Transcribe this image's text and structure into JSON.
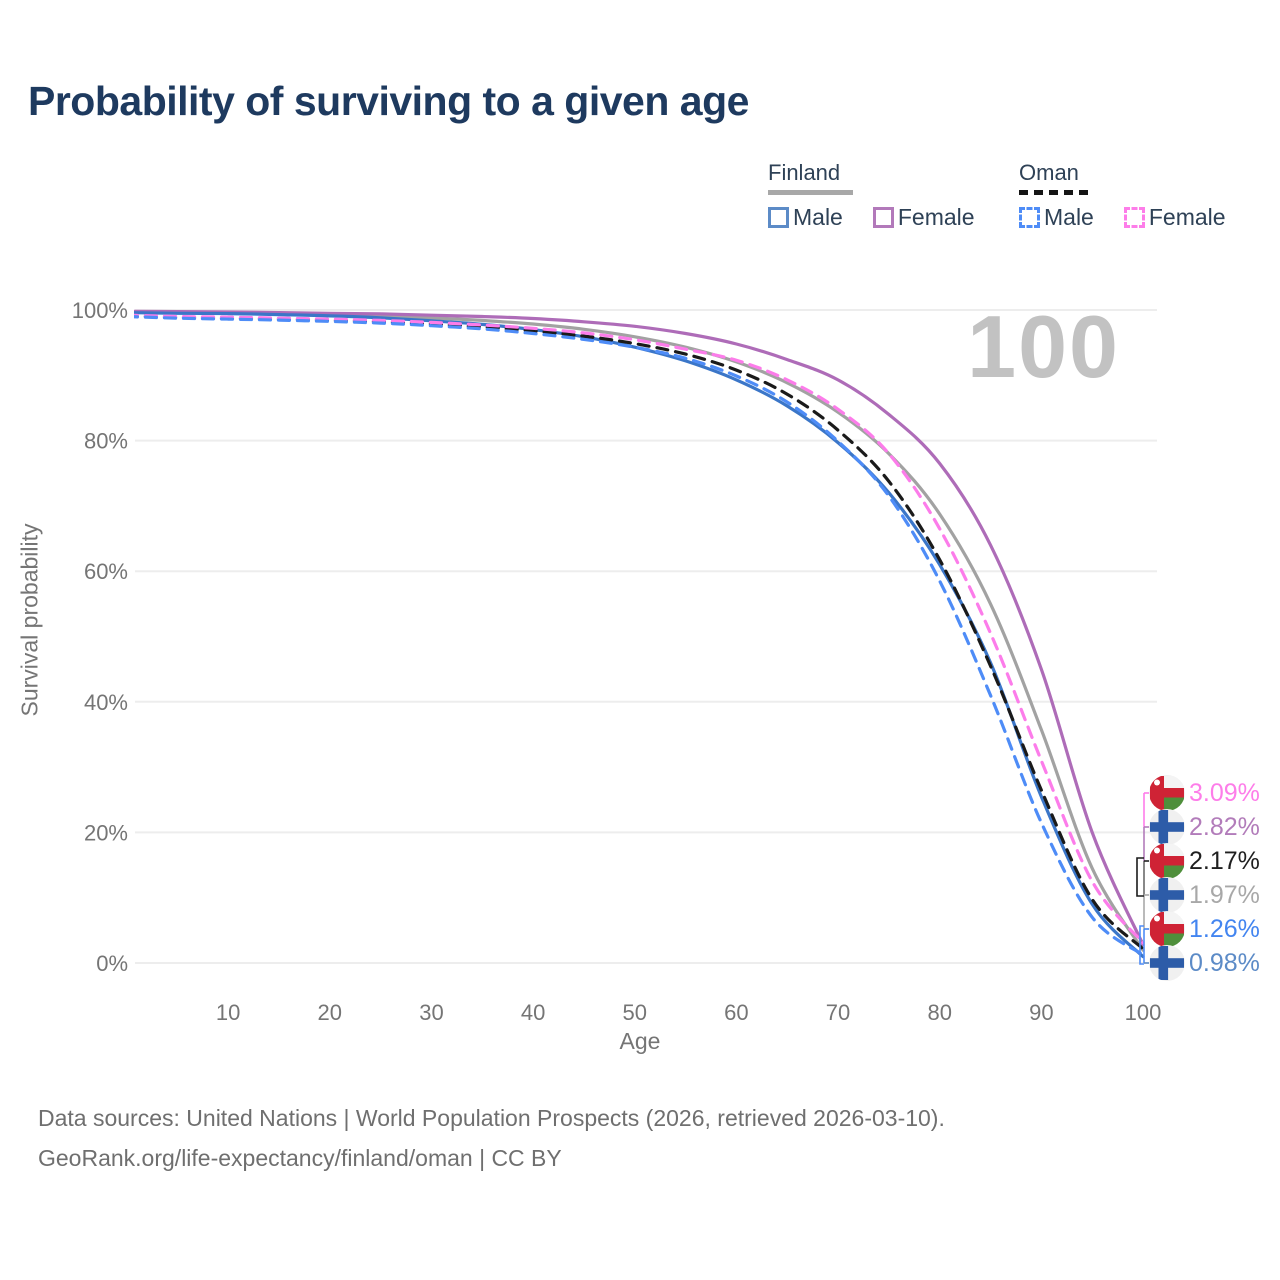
{
  "title": "Probability of surviving to a given age",
  "watermark_age": "100",
  "legend": {
    "finland": {
      "label": "Finland",
      "male": "Male",
      "female": "Female"
    },
    "oman": {
      "label": "Oman",
      "male": "Male",
      "female": "Female"
    }
  },
  "footer": {
    "line1": "Data sources: United Nations | World Population Prospects (2026, retrieved 2026-03-10).",
    "line2": "GeoRank.org/life-expectancy/finland/oman | CC BY"
  },
  "colors": {
    "title_text": "#1e3a5f",
    "legend_text": "#2e4156",
    "axis_text": "#757575",
    "gridline": "#ededed",
    "watermark": "#c2c2c2",
    "finland_underline": "#a8a8a8",
    "oman_underline": "#151515",
    "finland_male": "#3b76c8",
    "finland_female": "#ae6cb8",
    "finland_both": "#a2a2a2",
    "oman_male": "#4e8cf7",
    "oman_female": "#fc7cea",
    "oman_both": "#1a1a1a"
  },
  "end_labels": [
    {
      "flag": "oman",
      "series": "Oman Female",
      "value": "3.09%",
      "color": "#fd7de9"
    },
    {
      "flag": "finland",
      "series": "Finland Female",
      "value": "2.82%",
      "color": "#b27cba"
    },
    {
      "flag": "oman",
      "series": "Oman Both sexes",
      "value": "2.17%",
      "color": "#1f1f1f"
    },
    {
      "flag": "finland",
      "series": "Finland Both sexes",
      "value": "1.97%",
      "color": "#a8a8a8"
    },
    {
      "flag": "oman",
      "series": "Oman Male",
      "value": "1.26%",
      "color": "#4385f0"
    },
    {
      "flag": "finland",
      "series": "Finland Male",
      "value": "0.98%",
      "color": "#5c8bc7"
    }
  ],
  "chart_data": {
    "type": "line",
    "title": "Probability of surviving to a given age",
    "xlabel": "Age",
    "ylabel": "Survival probability",
    "x_range": [
      0,
      100
    ],
    "y_range_pct": [
      0,
      100
    ],
    "x_ticks": [
      10,
      20,
      30,
      40,
      50,
      60,
      70,
      80,
      90,
      100
    ],
    "y_ticks": [
      "0%",
      "20%",
      "40%",
      "60%",
      "80%",
      "100%"
    ],
    "grid": "horizontal-only",
    "legend_position": "top-right",
    "x_ages": [
      0,
      5,
      10,
      15,
      20,
      25,
      30,
      35,
      40,
      45,
      50,
      55,
      60,
      65,
      70,
      75,
      80,
      85,
      90,
      95,
      100
    ],
    "series": [
      {
        "name": "Finland Both sexes",
        "country": "Finland",
        "sex": "both",
        "style": "solid",
        "color": "#a2a2a2",
        "end_value_pct": 1.97,
        "values": [
          99.7,
          99.62,
          99.57,
          99.45,
          99.3,
          99.1,
          98.78,
          98.4,
          97.85,
          97.05,
          95.9,
          94.3,
          92.05,
          88.85,
          84.35,
          78.0,
          68.75,
          55.0,
          35.75,
          14.5,
          1.97
        ]
      },
      {
        "name": "Finland Female",
        "country": "Finland",
        "sex": "female",
        "style": "solid",
        "color": "#ae6cb8",
        "end_value_pct": 2.82,
        "values": [
          99.8,
          99.75,
          99.7,
          99.6,
          99.5,
          99.4,
          99.2,
          99.0,
          98.7,
          98.2,
          97.5,
          96.4,
          94.8,
          92.4,
          89.3,
          84.0,
          76.5,
          64.0,
          45.0,
          20.0,
          2.82
        ]
      },
      {
        "name": "Finland Male",
        "country": "Finland",
        "sex": "male",
        "style": "solid",
        "color": "#3b76c8",
        "end_value_pct": 0.98,
        "values": [
          99.6,
          99.5,
          99.45,
          99.3,
          99.1,
          98.8,
          98.35,
          97.8,
          97.0,
          95.9,
          94.3,
          92.2,
          89.3,
          85.3,
          79.7,
          72.0,
          61.0,
          46.0,
          25.5,
          9.0,
          0.98
        ]
      },
      {
        "name": "Oman Both sexes",
        "country": "Oman",
        "sex": "both",
        "style": "dashed",
        "color": "#1a1a1a",
        "end_value_pct": 2.17,
        "values": [
          99.1,
          98.87,
          98.75,
          98.6,
          98.42,
          98.2,
          97.85,
          97.4,
          96.8,
          96.0,
          94.85,
          93.25,
          90.8,
          87.1,
          81.6,
          73.75,
          61.75,
          45.5,
          26.5,
          9.75,
          2.17
        ]
      },
      {
        "name": "Oman Female",
        "country": "Oman",
        "sex": "female",
        "style": "dashed",
        "color": "#fc7cea",
        "end_value_pct": 3.09,
        "values": [
          99.2,
          99.0,
          98.9,
          98.75,
          98.6,
          98.4,
          98.1,
          97.7,
          97.2,
          96.5,
          95.45,
          94.0,
          92.3,
          89.3,
          84.8,
          78.0,
          66.5,
          50.5,
          31.0,
          12.5,
          3.09
        ]
      },
      {
        "name": "Oman Male",
        "country": "Oman",
        "sex": "male",
        "style": "dashed",
        "color": "#4e8cf7",
        "end_value_pct": 1.26,
        "values": [
          99.0,
          98.75,
          98.6,
          98.45,
          98.25,
          98.0,
          97.6,
          97.1,
          96.4,
          95.5,
          94.3,
          92.6,
          89.9,
          85.9,
          79.9,
          71.5,
          58.5,
          41.0,
          21.5,
          7.0,
          1.26
        ]
      }
    ]
  }
}
